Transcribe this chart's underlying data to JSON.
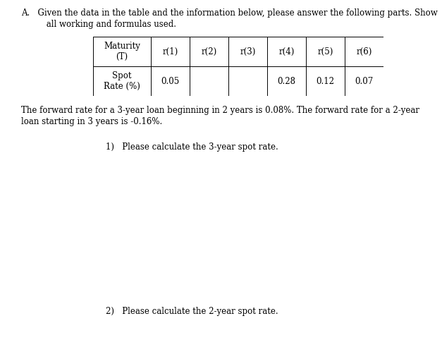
{
  "header_line1": "A.   Given the data in the table and the information below, please answer the following parts. Show",
  "header_line2": "     all working and formulas used.",
  "table_col_headers": [
    "Maturity\n(T)",
    "r(1)",
    "r(2)",
    "r(3)",
    "r(4)",
    "r(5)",
    "r(6)"
  ],
  "table_row_label": "Spot\nRate (%)",
  "table_values": [
    "0.05",
    "",
    "",
    "0.28",
    "0.12",
    "0.07"
  ],
  "forward_line1": "The forward rate for a 3-year loan beginning in 2 years is 0.08%. The forward rate for a 2-year",
  "forward_line2": "loan starting in 3 years is -0.16%.",
  "question1": "1)   Please calculate the 3-year spot rate.",
  "question2": "2)   Please calculate the 2-year spot rate.",
  "bg_color": "#ffffff",
  "text_color": "#000000",
  "font_size": 8.5,
  "table_font_size": 8.5
}
